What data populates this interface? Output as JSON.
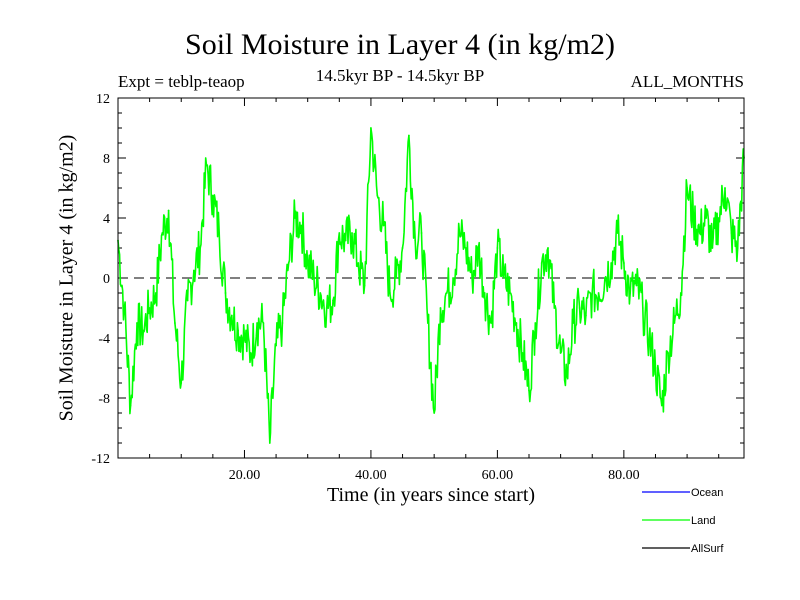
{
  "chart_data": {
    "type": "line",
    "title": "Soil Moisture in Layer 4 (in kg/m2)",
    "experiment": "Expt = teblp-teaop",
    "period": "14.5kyr BP - 14.5kyr BP",
    "months": "ALL_MONTHS",
    "xlabel": "Time (in years since start)",
    "ylabel": "Soil Moisture in Layer 4 (in kg/m2)",
    "xlim": [
      0,
      99
    ],
    "ylim": [
      -12,
      12
    ],
    "xticks": [
      20,
      40,
      60,
      80
    ],
    "xtick_labels": [
      "20.00",
      "40.00",
      "60.00",
      "80.00"
    ],
    "yticks": [
      -12,
      -8,
      -4,
      0,
      4,
      8,
      12
    ],
    "ytick_labels": [
      "-12",
      "-8",
      "-4",
      "0",
      "4",
      "8",
      "12"
    ],
    "reference_line": 0,
    "legend": [
      {
        "name": "Ocean",
        "color": "#0000ff"
      },
      {
        "name": "Land",
        "color": "#00ff00"
      },
      {
        "name": "AllSurf",
        "color": "#000000"
      }
    ],
    "series": [
      {
        "name": "Land",
        "color": "#00ff00",
        "x": [
          0,
          1,
          2,
          3,
          4,
          5,
          6,
          7,
          8,
          9,
          10,
          11,
          12,
          13,
          14,
          15,
          16,
          17,
          18,
          19,
          20,
          21,
          22,
          23,
          24,
          25,
          26,
          27,
          28,
          29,
          30,
          31,
          32,
          33,
          34,
          35,
          36,
          37,
          38,
          39,
          40,
          41,
          42,
          43,
          44,
          45,
          46,
          47,
          48,
          49,
          50,
          51,
          52,
          53,
          54,
          55,
          56,
          57,
          58,
          59,
          60,
          61,
          62,
          63,
          64,
          65,
          66,
          67,
          68,
          69,
          70,
          71,
          72,
          73,
          74,
          75,
          76,
          77,
          78,
          79,
          80,
          81,
          82,
          83,
          84,
          85,
          86,
          87,
          88,
          89,
          90,
          91,
          92,
          93,
          94,
          95,
          96,
          97,
          98,
          99
        ],
        "values": [
          2.5,
          -2,
          -8.5,
          -3,
          -3.5,
          -2,
          -1,
          3,
          4.5,
          -3,
          -7,
          -1.5,
          0.5,
          2,
          7.5,
          5.5,
          3,
          -1,
          -2.5,
          -3.5,
          -4,
          -5,
          -3,
          -3,
          -11,
          -4.5,
          -3,
          1,
          4,
          3.5,
          1,
          0,
          -1,
          -2,
          -1.5,
          3,
          2.5,
          3,
          1,
          -0.5,
          10,
          5.5,
          3.5,
          -1,
          0,
          2,
          9.5,
          2.5,
          3,
          -3,
          -9,
          -2,
          -1,
          0,
          3,
          2,
          0,
          2,
          -1,
          -3,
          2,
          0,
          -1,
          -3,
          -5,
          -7.5,
          -3,
          1,
          2,
          -2,
          -5,
          -6.5,
          -3,
          -2,
          -2.5,
          -1,
          -1,
          0,
          1,
          3,
          1,
          -1,
          -0.5,
          -2,
          -4,
          -6,
          -8.5,
          -5,
          -3,
          -1,
          6,
          4,
          3,
          4,
          2,
          4,
          6,
          3,
          2,
          8
        ]
      }
    ]
  }
}
